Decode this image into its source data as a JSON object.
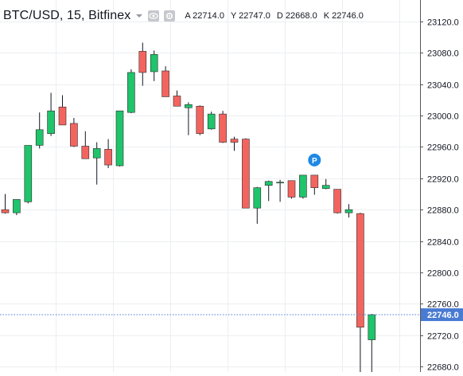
{
  "header": {
    "title": "BTC/USD, 15, Bitfinex",
    "ohlc": [
      {
        "key": "A",
        "value": "22714.0"
      },
      {
        "key": "Y",
        "value": "22747.0"
      },
      {
        "key": "D",
        "value": "22668.0"
      },
      {
        "key": "K",
        "value": "22746.0"
      }
    ],
    "icons": [
      "chevron-down-icon",
      "eye-icon",
      "gear-icon"
    ]
  },
  "colors": {
    "up": "#26a69a",
    "up_fill": "#1fc46b",
    "down": "#ef5350",
    "down_fill": "#f4645f",
    "wick": "#131722",
    "grid": "#eceef2",
    "axis_text": "#131722",
    "price_tag": "#4a7bd2",
    "marker": "#1e88e5"
  },
  "chart_data": {
    "type": "candlestick",
    "y_axis": {
      "ticks": [
        "23120.0",
        "23080.0",
        "23040.0",
        "23000.0",
        "22960.0",
        "22920.0",
        "22880.0",
        "22840.0",
        "22800.0",
        "22760.0",
        "22720.0",
        "22680.0"
      ],
      "range": [
        22672,
        23130
      ],
      "side": "right"
    },
    "grid": true,
    "last_price": {
      "label": "22746.0",
      "value": 22746.0
    },
    "marker": {
      "label": "P",
      "candle_index": 27
    },
    "candles": [
      {
        "o": 22880,
        "h": 22900,
        "l": 22875,
        "c": 22876
      },
      {
        "o": 22876,
        "h": 22893,
        "l": 22873,
        "c": 22893
      },
      {
        "o": 22890,
        "h": 22962,
        "l": 22888,
        "c": 22962
      },
      {
        "o": 22962,
        "h": 23004,
        "l": 22958,
        "c": 22982
      },
      {
        "o": 22977,
        "h": 23029,
        "l": 22974,
        "c": 23006
      },
      {
        "o": 23011,
        "h": 23026,
        "l": 22988,
        "c": 22988
      },
      {
        "o": 22990,
        "h": 22997,
        "l": 22960,
        "c": 22961
      },
      {
        "o": 22961,
        "h": 22980,
        "l": 22945,
        "c": 22945
      },
      {
        "o": 22946,
        "h": 22966,
        "l": 22912,
        "c": 22958
      },
      {
        "o": 22957,
        "h": 22970,
        "l": 22933,
        "c": 22937
      },
      {
        "o": 22936,
        "h": 23006,
        "l": 22935,
        "c": 23006
      },
      {
        "o": 23004,
        "h": 23059,
        "l": 23003,
        "c": 23055
      },
      {
        "o": 23082,
        "h": 23093,
        "l": 23038,
        "c": 23055
      },
      {
        "o": 23056,
        "h": 23083,
        "l": 23044,
        "c": 23078
      },
      {
        "o": 23057,
        "h": 23063,
        "l": 23024,
        "c": 23024
      },
      {
        "o": 23025,
        "h": 23032,
        "l": 23012,
        "c": 23012
      },
      {
        "o": 23010,
        "h": 23017,
        "l": 22975,
        "c": 23014
      },
      {
        "o": 23012,
        "h": 23013,
        "l": 22975,
        "c": 22977
      },
      {
        "o": 22983,
        "h": 23005,
        "l": 22982,
        "c": 23002
      },
      {
        "o": 23002,
        "h": 23006,
        "l": 22965,
        "c": 22966
      },
      {
        "o": 22970,
        "h": 22973,
        "l": 22955,
        "c": 22966
      },
      {
        "o": 22970,
        "h": 22971,
        "l": 22882,
        "c": 22882
      },
      {
        "o": 22882,
        "h": 22909,
        "l": 22862,
        "c": 22908
      },
      {
        "o": 22911,
        "h": 22917,
        "l": 22891,
        "c": 22916
      },
      {
        "o": 22915,
        "h": 22918,
        "l": 22890,
        "c": 22915
      },
      {
        "o": 22917,
        "h": 22917,
        "l": 22894,
        "c": 22896
      },
      {
        "o": 22896,
        "h": 22924,
        "l": 22894,
        "c": 22924
      },
      {
        "o": 22924,
        "h": 22924,
        "l": 22899,
        "c": 22908
      },
      {
        "o": 22907,
        "h": 22919,
        "l": 22906,
        "c": 22911
      },
      {
        "o": 22906,
        "h": 22906,
        "l": 22875,
        "c": 22876
      },
      {
        "o": 22876,
        "h": 22887,
        "l": 22870,
        "c": 22880
      },
      {
        "o": 22875,
        "h": 22876,
        "l": 22668,
        "c": 22730
      },
      {
        "o": 22714,
        "h": 22747,
        "l": 22668,
        "c": 22746
      }
    ]
  }
}
